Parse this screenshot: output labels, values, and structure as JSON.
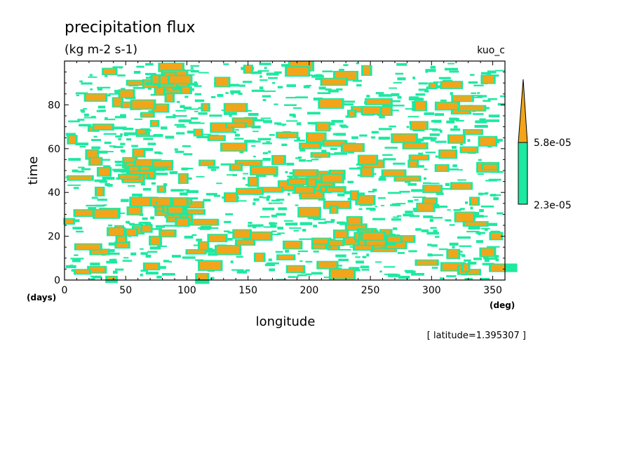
{
  "chart_data": {
    "type": "heatmap",
    "title": "precipitation flux",
    "subtitle": "(kg m-2 s-1)",
    "run_label": "kuo_c",
    "xlabel": "longitude",
    "ylabel": "time",
    "x_unit": "(deg)",
    "y_unit": "(days)",
    "xlim": [
      0,
      360
    ],
    "ylim": [
      0,
      100
    ],
    "x_ticks": [
      0,
      50,
      100,
      150,
      200,
      250,
      300,
      350
    ],
    "y_ticks": [
      0,
      20,
      40,
      60,
      80
    ],
    "footnote": "[ latitude=1.395307 ]",
    "levels": [
      {
        "label": "2.3e-05",
        "value": 2.3e-05,
        "color": "#1de9a0"
      },
      {
        "label": "5.8e-05",
        "value": 5.8e-05,
        "color": "#f2a51a"
      }
    ],
    "grid": false,
    "legend": "right colorbar"
  }
}
